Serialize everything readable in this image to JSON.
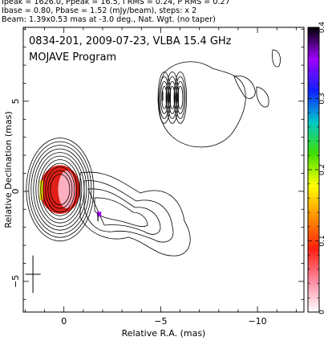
{
  "header": {
    "line1": "Ipeak = 1626.0, Ppeak = 16.5, I RMS = 0.24, P RMS = 0.27",
    "line2": "Ibase = 0.80, Pbase = 1.52 (mJy/beam), steps: x 2",
    "line3": "Beam: 1.39x0.53 mas at -3.0 deg., Nat. Wgt. (no taper)"
  },
  "chart_data": {
    "type": "contour",
    "title": "0834-201, 2009-07-23, VLBA 15.4 GHz",
    "subtitle": "MOJAVE Program",
    "xlabel": "Relative R.A. (mas)",
    "ylabel": "Relative Declination (mas)",
    "xlim": [
      2.1,
      -12.4
    ],
    "ylim": [
      -6.7,
      9.1
    ],
    "xticks": [
      0,
      -5,
      -10
    ],
    "xtick_labels": [
      "0",
      "−5",
      "−10"
    ],
    "yticks": [
      -5,
      0,
      5
    ],
    "ytick_labels": [
      "−5",
      "0",
      "5"
    ],
    "core": {
      "x": 0.2,
      "y": 0.1
    },
    "core_contour_levels": 11,
    "knot": {
      "x": -5.6,
      "y": 5.2
    },
    "polarization_vector": {
      "x": -1.8,
      "y": -1.4
    },
    "beam": {
      "major_mas": 1.39,
      "minor_mas": 0.53,
      "pa_deg": -3.0,
      "x": 1.6,
      "y": -4.6
    },
    "colorbar": {
      "min": 0,
      "max": 0.4,
      "ticks": [
        0,
        0.1,
        0.2,
        0.3,
        0.4
      ],
      "tick_labels": [
        "0",
        "0.1",
        "0.2",
        "0.3",
        "0.4"
      ],
      "colors": [
        "#ffffff",
        "#ff88a0",
        "#ff2010",
        "#ff9000",
        "#ffff00",
        "#40e000",
        "#00c8c8",
        "#1020ff",
        "#a000ff",
        "#000000"
      ]
    }
  }
}
